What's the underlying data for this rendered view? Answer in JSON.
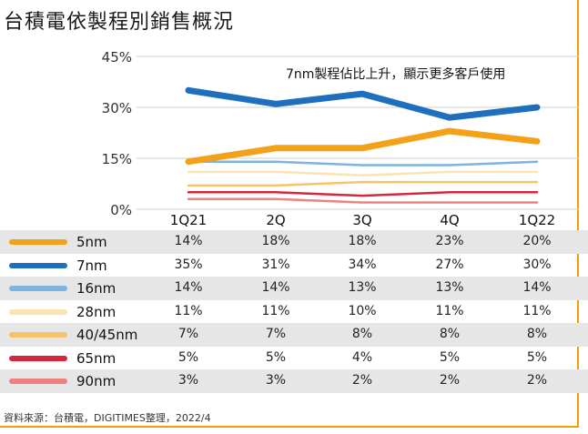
{
  "title": "台積電依製程別銷售概況",
  "annotation": "7nm製程佔比上升，顯示更多客戶使用",
  "source": "資料來源：台積電，DIGITIMES整理，2022/4",
  "chart_data": {
    "type": "line",
    "categories": [
      "1Q21",
      "2Q",
      "3Q",
      "4Q",
      "1Q22"
    ],
    "y_ticks": [
      "0%",
      "15%",
      "30%",
      "45%"
    ],
    "ylim": [
      0,
      45
    ],
    "grid": true,
    "series": [
      {
        "name": "5nm",
        "color": "#f4a11a",
        "values": [
          14,
          18,
          18,
          23,
          20
        ],
        "labels": [
          "14%",
          "18%",
          "18%",
          "23%",
          "20%"
        ]
      },
      {
        "name": "7nm",
        "color": "#1f6fbf",
        "values": [
          35,
          31,
          34,
          27,
          30
        ],
        "labels": [
          "35%",
          "31%",
          "34%",
          "27%",
          "30%"
        ]
      },
      {
        "name": "16nm",
        "color": "#7fb3e0",
        "values": [
          14,
          14,
          13,
          13,
          14
        ],
        "labels": [
          "14%",
          "14%",
          "13%",
          "13%",
          "14%"
        ]
      },
      {
        "name": "28nm",
        "color": "#fbe3b4",
        "values": [
          11,
          11,
          10,
          11,
          11
        ],
        "labels": [
          "11%",
          "11%",
          "10%",
          "11%",
          "11%"
        ]
      },
      {
        "name": "40/45nm",
        "color": "#f6c36a",
        "values": [
          7,
          7,
          8,
          8,
          8
        ],
        "labels": [
          "7%",
          "7%",
          "8%",
          "8%",
          "8%"
        ]
      },
      {
        "name": "65nm",
        "color": "#d7263d",
        "values": [
          5,
          5,
          4,
          5,
          5
        ],
        "labels": [
          "5%",
          "5%",
          "4%",
          "5%",
          "5%"
        ]
      },
      {
        "name": "90nm",
        "color": "#ee8080",
        "values": [
          3,
          3,
          2,
          2,
          2
        ],
        "labels": [
          "3%",
          "3%",
          "2%",
          "2%",
          "2%"
        ]
      }
    ]
  }
}
